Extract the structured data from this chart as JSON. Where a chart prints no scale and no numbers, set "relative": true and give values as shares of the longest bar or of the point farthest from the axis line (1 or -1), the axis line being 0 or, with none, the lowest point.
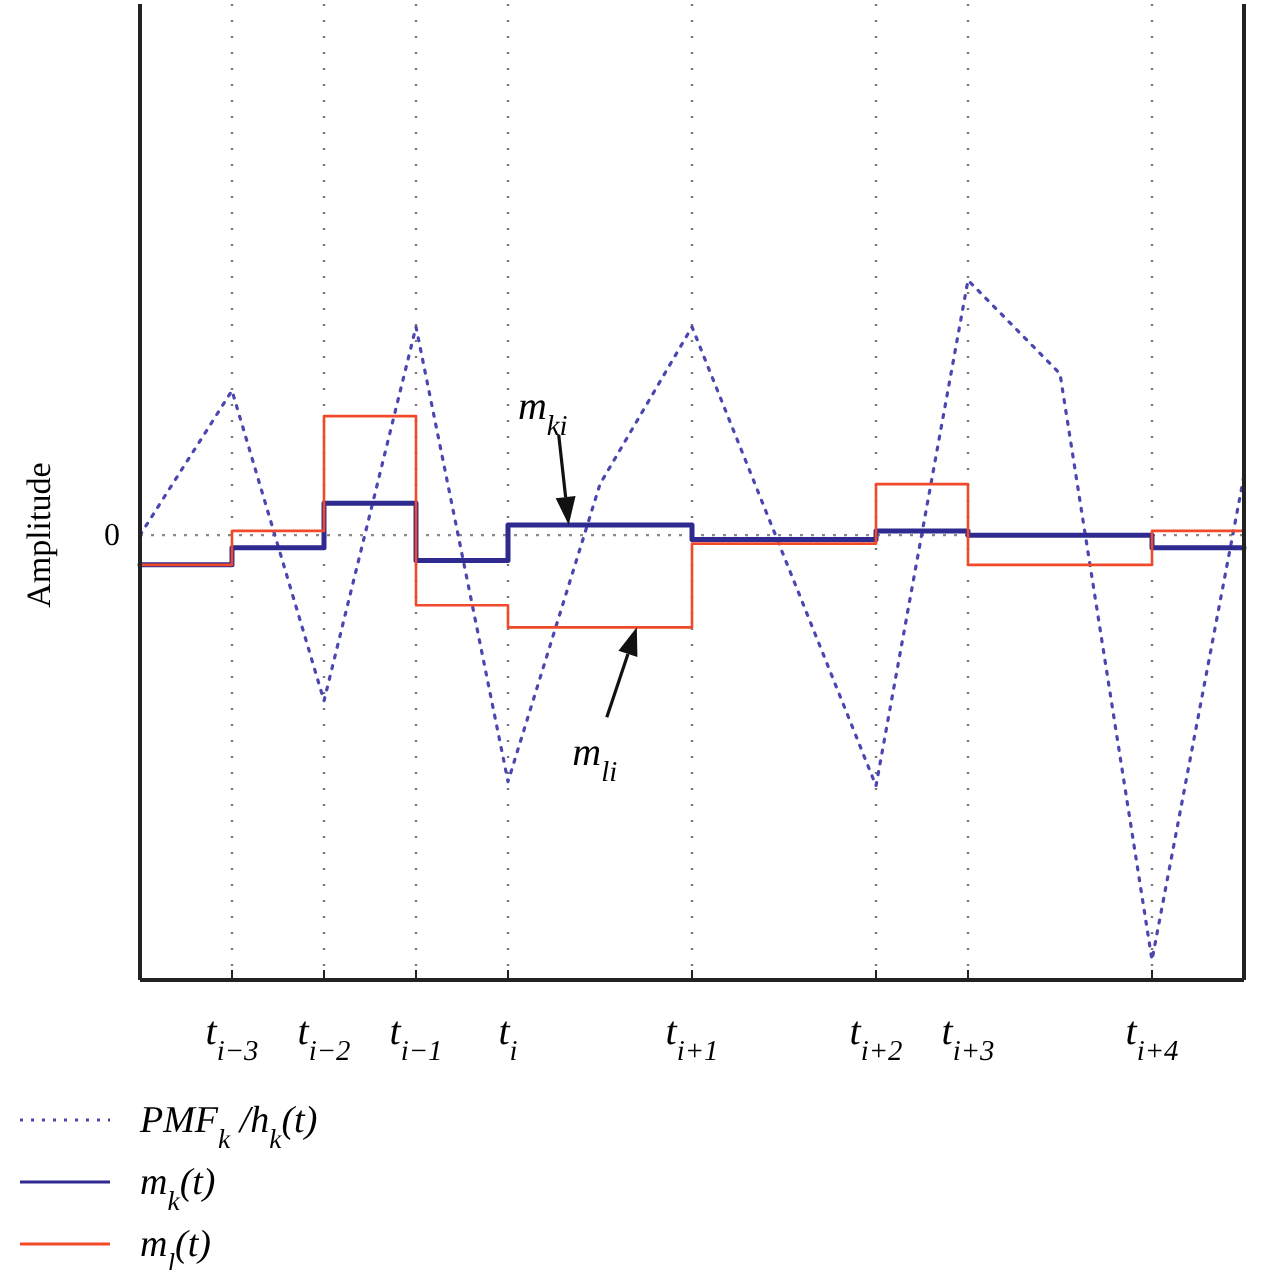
{
  "chart_data": {
    "type": "line",
    "relative": true,
    "ylabel": "Amplitude",
    "categories": [
      null,
      "t$_{i−3}$",
      "t$_{i−2}$",
      "t$_{i−1}$",
      "t$_{i}$",
      null,
      "t$_{i+1}$",
      null,
      "t$_{i+2}$",
      "t$_{i+3}$",
      null,
      "t$_{i+4}$",
      null
    ],
    "grid": "x",
    "legend": "bottom",
    "ref_lines": [
      {
        "axis": "y",
        "value": 0,
        "label": "0",
        "line_style": "dotted",
        "color": "#888888"
      }
    ],
    "series": [
      {
        "name": "PMF$_{k}$ /h$_{k}$(t)",
        "type": "line",
        "line_style": "dotted",
        "color": "#4a48b0",
        "values": [
          0,
          0.34,
          -0.39,
          0.49,
          -0.58,
          0.12,
          0.49,
          -0.05,
          -0.59,
          0.6,
          0.38,
          -1,
          0.14
        ]
      },
      {
        "name": "m$_{k}$(t)",
        "type": "step",
        "line_style": "solid",
        "color": "#2e2a8f",
        "values": [
          -0.07,
          -0.03,
          0.075,
          -0.06,
          0.024,
          0.024,
          -0.01,
          -0.01,
          0.01,
          0,
          0,
          -0.03,
          -0.03
        ]
      },
      {
        "name": "m$_{l}$(t)",
        "type": "step",
        "line_style": "solid",
        "color": "#f04a2a",
        "values": [
          -0.07,
          0.01,
          0.28,
          -0.165,
          -0.217,
          -0.217,
          -0.02,
          -0.02,
          0.12,
          -0.07,
          -0.07,
          0.01,
          0.01
        ]
      }
    ],
    "annotations": [
      {
        "text": "m$_{ki}$",
        "y": 0.024
      },
      {
        "text": "m$_{li}$",
        "y": -0.217
      }
    ]
  }
}
